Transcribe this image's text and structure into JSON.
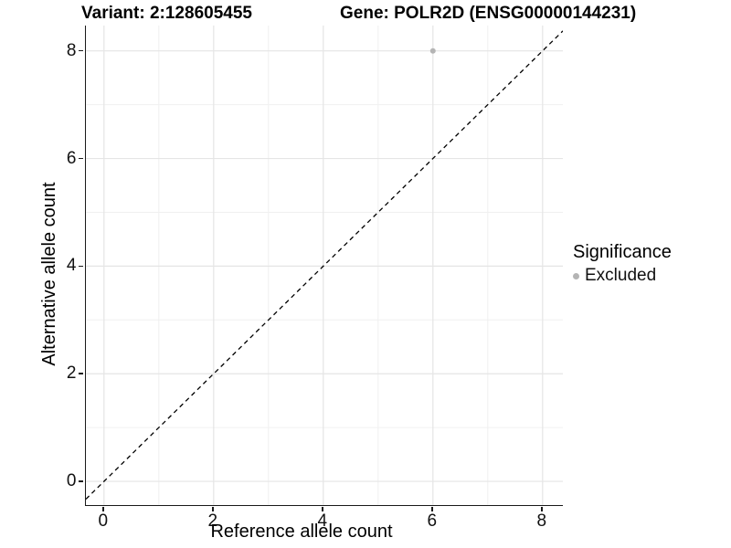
{
  "chart_data": {
    "type": "scatter",
    "titles": {
      "left": "Variant: 2:128605455",
      "right": "Gene: POLR2D (ENSG00000144231)"
    },
    "xlabel": "Reference allele count",
    "ylabel": "Alternative allele count",
    "x_ticks": [
      0,
      2,
      4,
      6,
      8
    ],
    "y_ticks": [
      0,
      2,
      4,
      6,
      8
    ],
    "xlim": [
      -0.33,
      8.37
    ],
    "ylim": [
      -0.44,
      8.47
    ],
    "grid": {
      "major": true,
      "minor": true,
      "major_color": "#e5e5e5",
      "minor_color": "#f0f0f0"
    },
    "reference_line": {
      "style": "dashed",
      "slope": 1,
      "intercept": 0,
      "color": "#000000"
    },
    "series": [
      {
        "name": "Excluded",
        "color": "#b4b4b4",
        "points": [
          {
            "x": 6,
            "y": 8
          }
        ],
        "point_radius": 3
      }
    ],
    "legend": {
      "title": "Significance",
      "position": "right",
      "items": [
        {
          "label": "Excluded",
          "color": "#b4b4b4"
        }
      ]
    }
  }
}
